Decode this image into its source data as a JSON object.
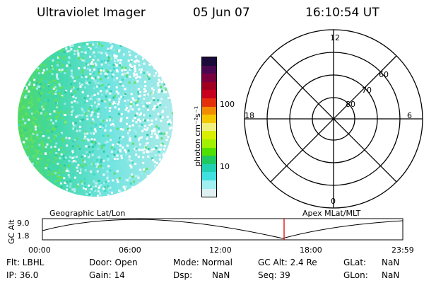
{
  "header": {
    "instrument": "Ultraviolet Imager",
    "date": "05 Jun 07",
    "time": "16:10:54 UT"
  },
  "colorbar": {
    "unit_label": "photon cm⁻²s⁻¹",
    "ticks": [
      "100",
      "10"
    ],
    "colors": [
      "#1a0a3a",
      "#4a0850",
      "#7a0040",
      "#a00020",
      "#c8001e",
      "#e4300a",
      "#f08c00",
      "#f4c800",
      "#f0f080",
      "#d8f000",
      "#a0f000",
      "#50e000",
      "#20c860",
      "#20d0b0",
      "#40e0e0",
      "#a0f0f0",
      "#e0f0f0"
    ]
  },
  "polar": {
    "labels": {
      "top": "12",
      "bottom": "0",
      "left": "18",
      "right": "6"
    },
    "ring_labels": [
      "60",
      "70",
      "80"
    ]
  },
  "timeline": {
    "left_title": "Geographic Lat/Lon",
    "right_title": "Apex MLat/MLT",
    "y_label": "GC Alt",
    "y_ticks": [
      "9.0",
      "1.8"
    ],
    "x_ticks": [
      "00:00",
      "06:00",
      "12:00",
      "18:00",
      "23:59"
    ],
    "current_time_marker": "16:10:54",
    "marker_color": "#e00000"
  },
  "info": {
    "flt": "Flt: LBHL",
    "ip": "IP: 36.0",
    "door": "Door: Open",
    "gain": "Gain: 14",
    "mode": "Mode: Normal",
    "dsp_label": "Dsp:",
    "dsp_value": "NaN",
    "gc_alt": "GC Alt: 2.4 Re",
    "seq": "Seq: 39",
    "glat_label": "GLat:",
    "glat_value": "NaN",
    "glon_label": "GLon:",
    "glon_value": "NaN"
  }
}
